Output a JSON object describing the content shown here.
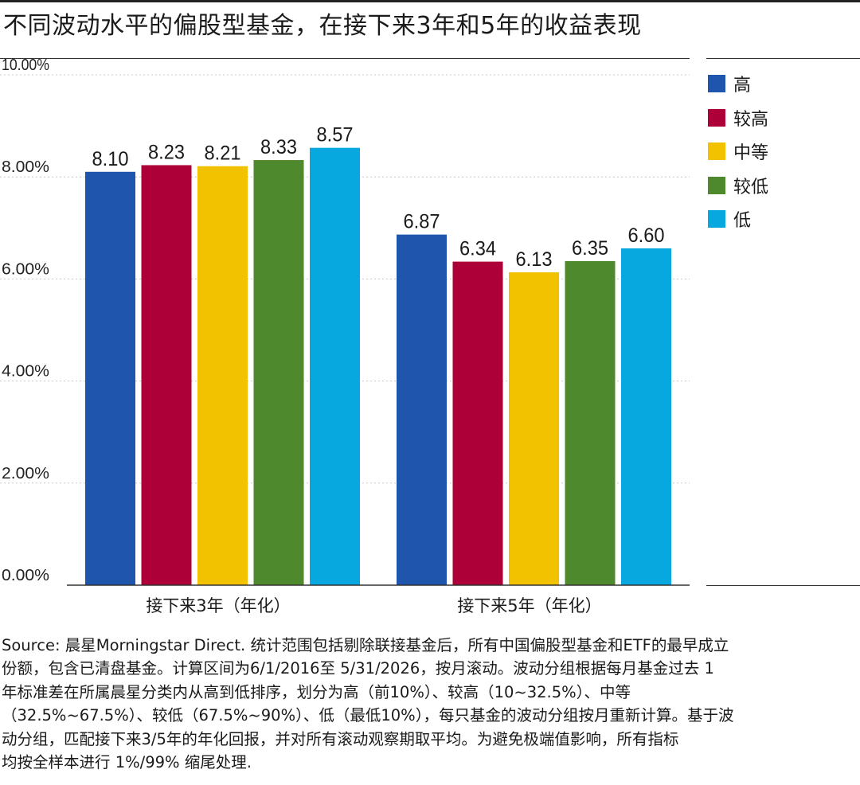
{
  "chart_data": {
    "type": "bar",
    "title": "不同波动水平的偏股型基金，在接下来3年和5年的收益表现",
    "categories": [
      "接下来3年（年化）",
      "接下来5年（年化）"
    ],
    "series": [
      {
        "name": "高",
        "color": "#1f55ad",
        "values": [
          8.1,
          6.87
        ],
        "labels": [
          "8.10",
          "6.87"
        ]
      },
      {
        "name": "较高",
        "color": "#ad0038",
        "values": [
          8.23,
          6.34
        ],
        "labels": [
          "8.23",
          "6.34"
        ]
      },
      {
        "name": "中等",
        "color": "#f2c200",
        "values": [
          8.21,
          6.13
        ],
        "labels": [
          "8.21",
          "6.13"
        ]
      },
      {
        "name": "较低",
        "color": "#4e8a2d",
        "values": [
          8.33,
          6.35
        ],
        "labels": [
          "8.33",
          "6.35"
        ]
      },
      {
        "name": "低",
        "color": "#07a8e0",
        "values": [
          8.57,
          6.6
        ],
        "labels": [
          "8.57",
          "6.60"
        ]
      }
    ],
    "ylim": [
      0,
      10
    ],
    "yticks": [
      0,
      2,
      4,
      6,
      8,
      10
    ],
    "ytick_labels": [
      "0.00%",
      "2.00%",
      "4.00%",
      "6.00%",
      "8.00%",
      "10.00%"
    ],
    "grid": true,
    "legend_position": "right"
  },
  "footnote": [
    "Source: 晨星Morningstar Direct. 统计范围包括剔除联接基金后，所有中国偏股型基金和ETF的最早成立",
    "份额，包含已清盘基金。计算区间为6/1/2016至 5/31/2026，按月滚动。波动分组根据每月基金过去 1",
    "年标准差在所属晨星分类内从高到低排序，划分为高（前10%）、较高（10~32.5%）、中等",
    "（32.5%~67.5%）、较低（67.5%~90%）、低（最低10%），每只基金的波动分组按月重新计算。基于波",
    "动分组，匹配接下来3/5年的年化回报，并对所有滚动观察期取平均。为避免极端值影响，所有指标",
    "均按全样本进行 1%/99% 缩尾处理."
  ]
}
